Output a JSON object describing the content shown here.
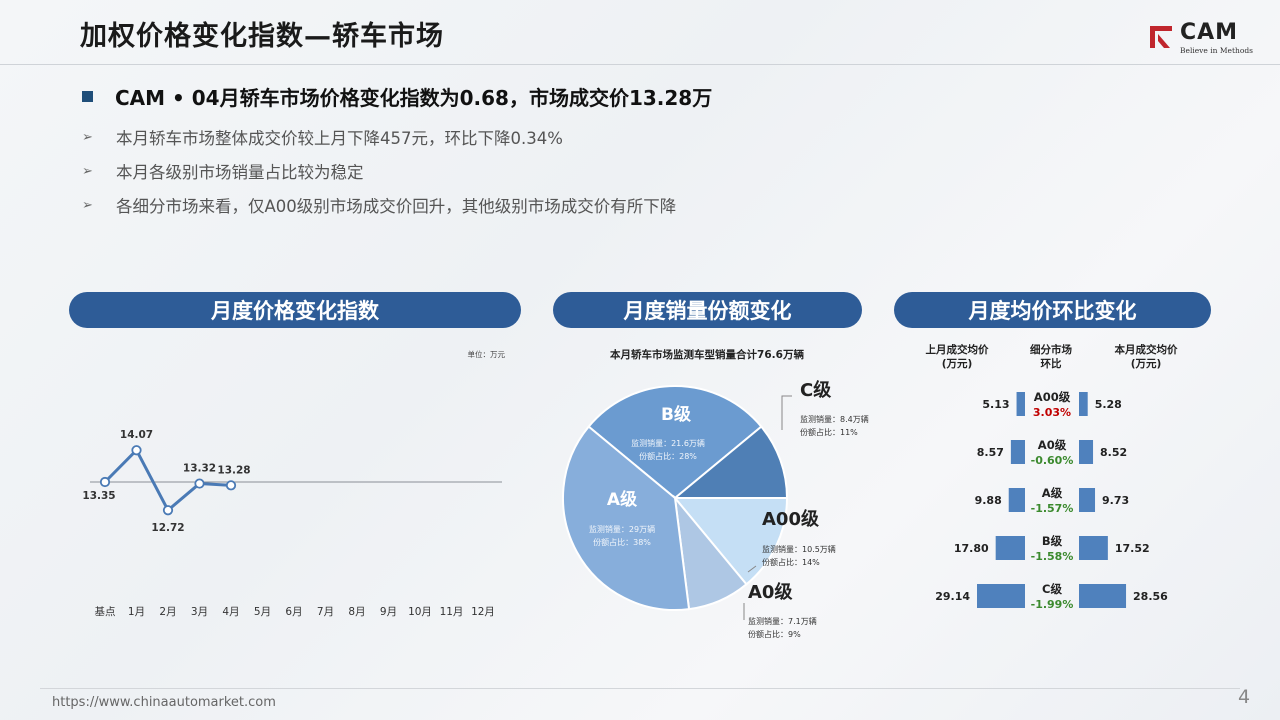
{
  "header": {
    "title": "加权价格变化指数—轿车市场",
    "logo_text": "CAM",
    "logo_tagline": "Believe in Methods",
    "brand_red": "#c0262d"
  },
  "headline": "CAM • 04月轿车市场价格变化指数为0.68，市场成交价13.28万",
  "bullets": [
    "本月轿车市场整体成交价较上月下降457元，环比下降0.34%",
    "本月各级别市场销量占比较为稳定",
    "各细分市场来看，仅A00级别市场成交价回升，其他级别市场成交价有所下降"
  ],
  "sections": {
    "index": "月度价格变化指数",
    "share": "月度销量份额变化",
    "price": "月度均价环比变化"
  },
  "colors": {
    "pill": "#2e5c97",
    "line": "#4a7ab5",
    "bar": "#4f81bd",
    "up": "#c00000",
    "down": "#3b8a2e"
  },
  "footer": {
    "url": "https://www.chinaautomarket.com",
    "page": "4"
  },
  "chart_data": [
    {
      "type": "line",
      "unit_label": "单位：万元",
      "categories": [
        "基点",
        "1月",
        "2月",
        "3月",
        "4月",
        "5月",
        "6月",
        "7月",
        "8月",
        "9月",
        "10月",
        "11月",
        "12月"
      ],
      "values": [
        13.35,
        14.07,
        12.72,
        13.32,
        13.28
      ],
      "labels": [
        "13.35",
        "14.07",
        "12.72",
        "13.32",
        "13.28"
      ]
    },
    {
      "type": "pie",
      "title": "本月轿车市场监测车型销量合计76.6万辆",
      "slices": [
        {
          "name": "B级",
          "volume": "监测销量：21.6万辆",
          "share": "份额占比：28%",
          "value": 28,
          "color": "#6b9bd0"
        },
        {
          "name": "C级",
          "volume": "监测销量：8.4万辆",
          "share": "份额占比：11%",
          "value": 11,
          "color": "#4f7fb5"
        },
        {
          "name": "A00级",
          "volume": "监测销量：10.5万辆",
          "share": "份额占比：14%",
          "value": 14,
          "color": "#c5dff5"
        },
        {
          "name": "A0级",
          "volume": "监测销量：7.1万辆",
          "share": "份额占比：9%",
          "value": 9,
          "color": "#aec7e4"
        },
        {
          "name": "A级",
          "volume": "监测销量：29万辆",
          "share": "份额占比：38%",
          "value": 38,
          "color": "#87aedb"
        }
      ]
    },
    {
      "type": "bar",
      "headers": {
        "prev": [
          "上月成交均价",
          "(万元)"
        ],
        "mid": [
          "细分市场",
          "环比"
        ],
        "curr": [
          "本月成交均价",
          "(万元)"
        ]
      },
      "rows": [
        {
          "segment": "A00级",
          "prev": 5.13,
          "curr": 5.28,
          "change": "3.03%",
          "direction": "up"
        },
        {
          "segment": "A0级",
          "prev": 8.57,
          "curr": 8.52,
          "change": "-0.60%",
          "direction": "down"
        },
        {
          "segment": "A级",
          "prev": 9.88,
          "curr": 9.73,
          "change": "-1.57%",
          "direction": "down"
        },
        {
          "segment": "B级",
          "prev": 17.8,
          "curr": 17.52,
          "change": "-1.58%",
          "direction": "down"
        },
        {
          "segment": "C级",
          "prev": 29.14,
          "curr": 28.56,
          "change": "-1.99%",
          "direction": "down"
        }
      ]
    }
  ]
}
